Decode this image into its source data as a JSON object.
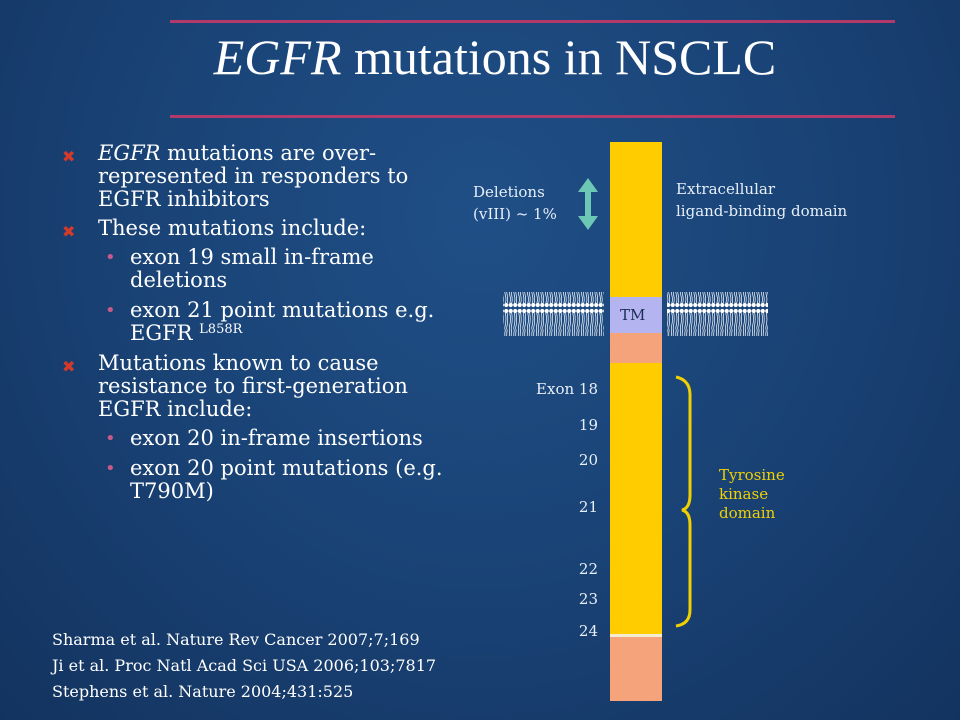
{
  "slide": {
    "title_italic": "EGFR",
    "title_rest": " mutations in NSCLC"
  },
  "bullets": [
    {
      "italic": "EGFR",
      "text": " mutations are over-represented in responders to EGFR inhibitors"
    },
    {
      "text": "These mutations include:"
    },
    {
      "text": "exon 19 small in-frame deletions"
    },
    {
      "text": "exon 21 point mutations e.g. EGFR ",
      "sup": "L858R"
    },
    {
      "text": "Mutations known to cause resistance to first-generation EGFR include:"
    },
    {
      "text": "exon 20 in-frame insertions"
    },
    {
      "text": "exon 20 point mutations (e.g. T790M)"
    }
  ],
  "references": [
    "Sharma et al. Nature Rev Cancer  2007;7;169",
    "Ji et al. Proc Natl Acad Sci USA 2006;103;7817",
    "Stephens et al. Nature 2004;431:525"
  ],
  "diagram": {
    "deletions_line1": "Deletions",
    "deletions_line2": "(vIII)  ~ 1%",
    "extracellular_line1": "Extracellular",
    "extracellular_line2": "ligand-binding domain",
    "tm_label": "TM",
    "exons": [
      "Exon 18",
      "19",
      "20",
      "21",
      "22",
      "23",
      "24"
    ],
    "tk_line1": "Tyrosine",
    "tk_line2": "kinase",
    "tk_line3": "domain",
    "colors": {
      "gold": "#ffcc00",
      "salmon": "#f5a37a",
      "tm": "#b4b4f0",
      "arrow": "#6cc7b4",
      "membrane": "#ffffff",
      "bracket": "#f0d000"
    }
  }
}
